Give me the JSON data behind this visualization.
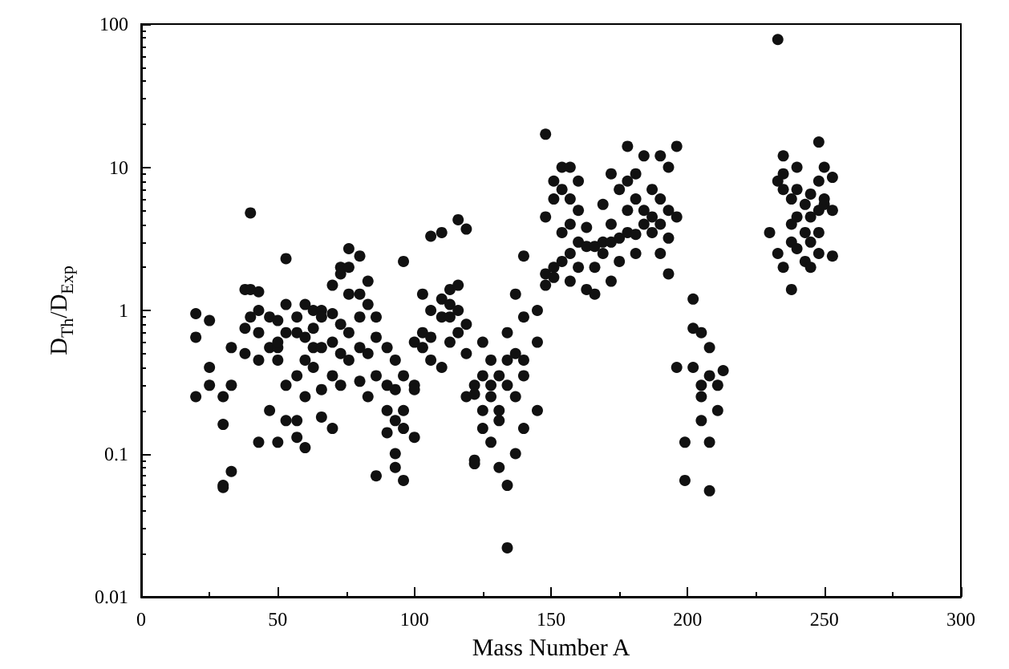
{
  "chart_data": {
    "type": "scatter",
    "xlabel": "Mass Number A",
    "ylabel": "D$_{Th}$/D$_{Exp}$",
    "log": "y",
    "grid": false,
    "marker": "circle",
    "xlim": [
      0,
      300
    ],
    "xticks": [
      0,
      50,
      100,
      150,
      200,
      250,
      300
    ],
    "ylim": [
      0.01,
      100
    ],
    "yticks": [
      0.01,
      0.1,
      1,
      10,
      100
    ],
    "series": [
      {
        "color": "#111111",
        "x": [
          20,
          20,
          20,
          25,
          25,
          25,
          30,
          30,
          30,
          30,
          33,
          33,
          33,
          38,
          38,
          38,
          40,
          40,
          40,
          43,
          43,
          43,
          43,
          43,
          47,
          47,
          47,
          50,
          50,
          50,
          50,
          50,
          53,
          53,
          53,
          53,
          53,
          57,
          57,
          57,
          57,
          57,
          60,
          60,
          60,
          60,
          60,
          63,
          63,
          63,
          63,
          66,
          66,
          66,
          66,
          66,
          70,
          70,
          70,
          70,
          70,
          73,
          73,
          73,
          73,
          73,
          76,
          76,
          76,
          76,
          76,
          80,
          80,
          80,
          80,
          80,
          83,
          83,
          83,
          83,
          86,
          86,
          86,
          86,
          90,
          90,
          90,
          90,
          93,
          93,
          93,
          93,
          93,
          96,
          96,
          96,
          96,
          96,
          100,
          100,
          100,
          100,
          103,
          103,
          103,
          106,
          106,
          106,
          106,
          110,
          110,
          110,
          110,
          113,
          113,
          113,
          113,
          116,
          116,
          116,
          116,
          119,
          119,
          119,
          119,
          122,
          122,
          122,
          122,
          125,
          125,
          125,
          125,
          128,
          128,
          128,
          128,
          131,
          131,
          131,
          131,
          134,
          134,
          134,
          134,
          134,
          137,
          137,
          137,
          137,
          140,
          140,
          140,
          140,
          140,
          145,
          145,
          145,
          148,
          148,
          148,
          148,
          151,
          151,
          151,
          151,
          154,
          154,
          154,
          154,
          157,
          157,
          157,
          157,
          157,
          160,
          160,
          160,
          160,
          163,
          163,
          163,
          166,
          166,
          166,
          169,
          169,
          169,
          172,
          172,
          172,
          172,
          175,
          175,
          175,
          178,
          178,
          178,
          178,
          181,
          181,
          181,
          181,
          184,
          184,
          184,
          187,
          187,
          187,
          190,
          190,
          190,
          190,
          193,
          193,
          193,
          193,
          196,
          196,
          196,
          199,
          199,
          202,
          202,
          202,
          205,
          205,
          205,
          205,
          208,
          208,
          208,
          208,
          211,
          211,
          213,
          230,
          233,
          233,
          233,
          235,
          235,
          235,
          235,
          238,
          238,
          238,
          238,
          240,
          240,
          240,
          240,
          243,
          243,
          243,
          245,
          245,
          245,
          245,
          248,
          248,
          248,
          248,
          248,
          250,
          250,
          250,
          253,
          253,
          253
        ],
        "values": [
          0.95,
          0.65,
          0.25,
          0.85,
          0.4,
          0.3,
          0.06,
          0.058,
          0.16,
          0.25,
          0.075,
          0.3,
          0.55,
          1.4,
          0.75,
          0.5,
          4.8,
          1.4,
          0.9,
          1.35,
          1.0,
          0.7,
          0.12,
          0.45,
          0.9,
          0.55,
          0.2,
          0.85,
          0.55,
          0.6,
          0.45,
          0.12,
          2.3,
          1.1,
          0.7,
          0.3,
          0.17,
          0.9,
          0.7,
          0.35,
          0.13,
          0.17,
          1.1,
          0.65,
          0.45,
          0.25,
          0.11,
          1.0,
          0.75,
          0.4,
          0.55,
          1.0,
          0.55,
          0.9,
          0.28,
          0.18,
          1.5,
          0.95,
          0.6,
          0.35,
          0.15,
          1.8,
          2.0,
          0.8,
          0.5,
          0.3,
          2.7,
          2.0,
          1.3,
          0.7,
          0.45,
          2.4,
          1.3,
          0.9,
          0.55,
          0.32,
          1.6,
          1.1,
          0.5,
          0.25,
          0.9,
          0.65,
          0.35,
          0.07,
          0.55,
          0.3,
          0.2,
          0.14,
          0.45,
          0.28,
          0.17,
          0.1,
          0.08,
          2.2,
          0.35,
          0.2,
          0.15,
          0.065,
          0.6,
          0.3,
          0.28,
          0.13,
          1.3,
          0.7,
          0.55,
          3.3,
          1.0,
          0.65,
          0.45,
          3.5,
          1.2,
          0.9,
          0.4,
          1.4,
          0.9,
          1.1,
          0.6,
          4.3,
          1.5,
          1.0,
          0.7,
          3.7,
          0.8,
          0.5,
          0.25,
          0.3,
          0.26,
          0.09,
          0.085,
          0.6,
          0.35,
          0.2,
          0.15,
          0.45,
          0.3,
          0.25,
          0.12,
          0.35,
          0.2,
          0.17,
          0.08,
          0.7,
          0.45,
          0.3,
          0.022,
          0.06,
          1.3,
          0.5,
          0.25,
          0.1,
          2.4,
          0.9,
          0.45,
          0.35,
          0.15,
          1.0,
          0.6,
          0.2,
          17,
          4.5,
          1.8,
          1.5,
          8,
          6,
          2.0,
          1.7,
          10,
          7,
          3.5,
          2.2,
          10,
          6,
          4,
          2.5,
          1.6,
          8,
          5,
          3,
          2.0,
          3.8,
          2.8,
          1.4,
          2.8,
          2.0,
          1.3,
          5.5,
          3.0,
          2.5,
          9,
          4,
          3,
          1.6,
          7,
          3.2,
          2.2,
          14,
          8,
          5,
          3.5,
          9,
          6,
          3.4,
          2.5,
          12,
          5,
          4,
          7,
          4.5,
          3.5,
          12,
          6,
          4,
          2.5,
          10,
          5,
          3.2,
          1.8,
          14,
          4.5,
          0.4,
          0.12,
          0.065,
          1.2,
          0.75,
          0.4,
          0.7,
          0.3,
          0.25,
          0.17,
          0.55,
          0.35,
          0.12,
          0.055,
          0.3,
          0.2,
          0.38,
          3.5,
          8,
          2.5,
          78,
          9,
          7,
          12,
          2.0,
          6,
          4,
          3,
          1.4,
          10,
          7,
          4.5,
          2.7,
          5.5,
          3.5,
          2.2,
          6.5,
          4.5,
          3,
          2.0,
          15,
          8,
          5,
          3.5,
          2.5,
          10,
          5.5,
          6,
          8.5,
          5,
          2.4
        ]
      }
    ]
  }
}
